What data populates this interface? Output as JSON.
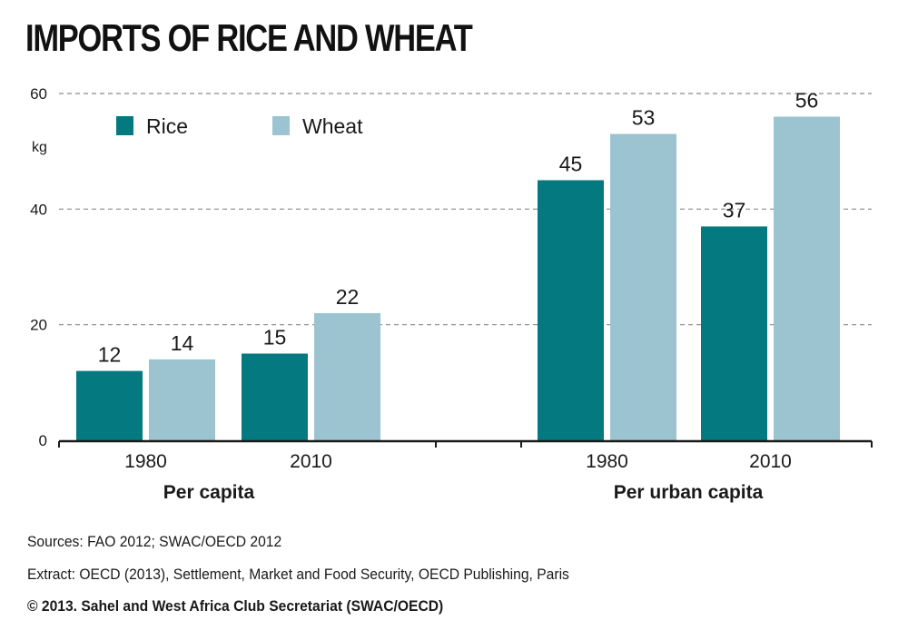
{
  "title": "IMPORTS OF RICE AND WHEAT",
  "chart_data": {
    "type": "bar",
    "ylabel": "kg",
    "ylim": [
      0,
      60
    ],
    "yticks": [
      0,
      20,
      40,
      60
    ],
    "grid": true,
    "legend_placement": "top-left",
    "groups": [
      {
        "label": "Per capita",
        "categories": [
          "1980",
          "2010"
        ]
      },
      {
        "label": "Per urban capita",
        "categories": [
          "1980",
          "2010"
        ]
      }
    ],
    "series": [
      {
        "name": "Rice",
        "color": "#047a80",
        "values": [
          12,
          15,
          45,
          37
        ]
      },
      {
        "name": "Wheat",
        "color": "#9bc3d0",
        "values": [
          14,
          22,
          53,
          56
        ]
      }
    ]
  },
  "footer": {
    "sources": "Sources: FAO 2012; SWAC/OECD 2012",
    "extract": "Extract: OECD (2013), Settlement, Market and Food Security, OECD Publishing, Paris",
    "copyright": "© 2013. Sahel and West Africa Club Secretariat (SWAC/OECD)"
  }
}
